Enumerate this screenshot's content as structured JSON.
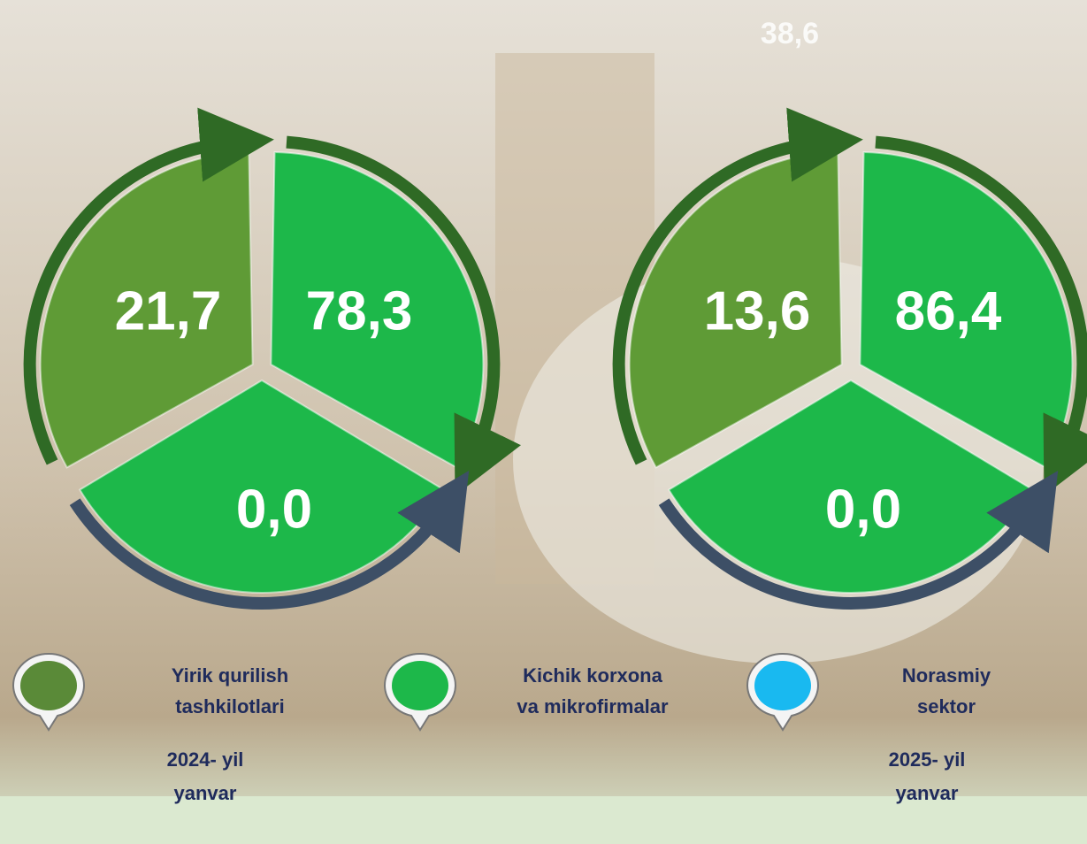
{
  "background_label": "38,6",
  "diagrams": [
    {
      "segments": [
        {
          "label": "21,7",
          "color": "#5f9b36"
        },
        {
          "label": "78,3",
          "color": "#1db84a"
        },
        {
          "label": "0,0",
          "color": "#1db84a"
        }
      ],
      "caption": [
        "2024- yil",
        "yanvar"
      ]
    },
    {
      "segments": [
        {
          "label": "13,6",
          "color": "#5f9b36"
        },
        {
          "label": "86,4",
          "color": "#1db84a"
        },
        {
          "label": "0,0",
          "color": "#1db84a"
        }
      ],
      "caption": [
        "2025- yil",
        "yanvar"
      ]
    }
  ],
  "legend": [
    {
      "label": [
        "Yirik qurilish",
        "tashkilotlari"
      ],
      "color": "#5a8a38"
    },
    {
      "label": [
        "Kichik korxona",
        "va mikrofirmalar"
      ],
      "color": "#1db84a"
    },
    {
      "label": [
        "Norasmiy",
        "sektor"
      ],
      "color": "#19b9f0"
    }
  ]
}
